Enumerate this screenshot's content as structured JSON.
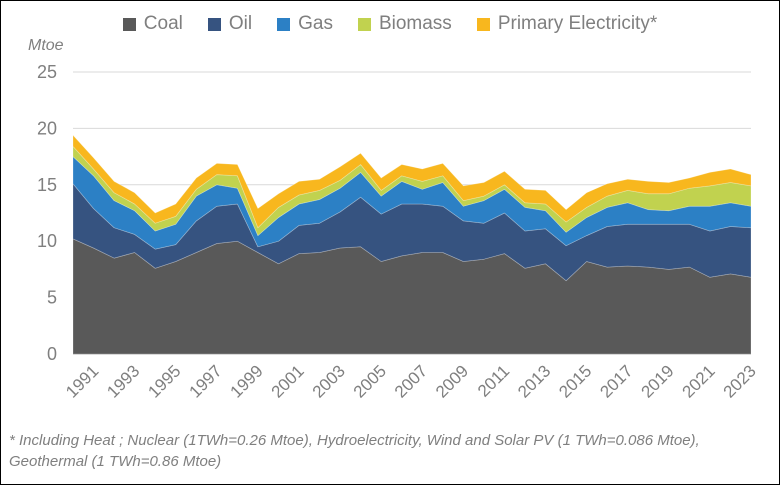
{
  "chart_data": {
    "type": "area",
    "stacked": true,
    "title": "",
    "ylabel": "Mtoe",
    "ylim": [
      0,
      25
    ],
    "yticks": [
      0,
      5,
      10,
      15,
      20,
      25
    ],
    "grid": "horizontal",
    "grid_color": "#D9D9D9",
    "axis_text_color": "#7F7F7F",
    "legend_position": "top",
    "x": [
      1990,
      1991,
      1992,
      1993,
      1994,
      1995,
      1996,
      1997,
      1998,
      1999,
      2000,
      2001,
      2002,
      2003,
      2004,
      2005,
      2006,
      2007,
      2008,
      2009,
      2010,
      2011,
      2012,
      2013,
      2014,
      2015,
      2016,
      2017,
      2018,
      2019,
      2020,
      2021,
      2022,
      2023
    ],
    "x_tick_labels": [
      "1991",
      "1993",
      "1995",
      "1997",
      "1999",
      "2001",
      "2003",
      "2005",
      "2007",
      "2009",
      "2011",
      "2013",
      "2015",
      "2017",
      "2019",
      "2021",
      "2023"
    ],
    "series": [
      {
        "name": "Coal",
        "color": "#595959",
        "values": [
          10.2,
          9.4,
          8.5,
          9.0,
          7.6,
          8.2,
          9.0,
          9.8,
          10.0,
          9.0,
          8.0,
          8.9,
          9.0,
          9.4,
          9.5,
          8.2,
          8.7,
          9.0,
          9.0,
          8.2,
          8.4,
          8.9,
          7.6,
          8.0,
          6.5,
          8.2,
          7.7,
          7.8,
          7.7,
          7.5,
          7.7,
          6.8,
          7.1,
          6.8
        ]
      },
      {
        "name": "Oil",
        "color": "#365380",
        "values": [
          4.9,
          3.5,
          2.7,
          1.6,
          1.7,
          1.5,
          2.8,
          3.3,
          3.3,
          0.5,
          2.0,
          2.5,
          2.6,
          3.2,
          4.4,
          4.2,
          4.6,
          4.3,
          4.1,
          3.6,
          3.2,
          3.6,
          3.3,
          3.1,
          3.1,
          2.3,
          3.6,
          3.7,
          3.8,
          4.0,
          3.8,
          4.1,
          4.2,
          4.4
        ]
      },
      {
        "name": "Gas",
        "color": "#2C80C5",
        "values": [
          2.4,
          2.9,
          2.4,
          2.1,
          1.6,
          1.8,
          2.2,
          1.9,
          1.4,
          1.0,
          2.1,
          1.9,
          2.1,
          2.1,
          2.2,
          1.6,
          2.0,
          1.3,
          2.1,
          1.3,
          2.0,
          2.1,
          2.1,
          1.6,
          1.2,
          1.6,
          1.7,
          1.9,
          1.3,
          1.2,
          1.6,
          2.2,
          2.1,
          1.9
        ]
      },
      {
        "name": "Biomass",
        "color": "#C1D24F",
        "values": [
          0.9,
          0.6,
          0.7,
          0.6,
          0.7,
          0.7,
          0.6,
          0.9,
          1.1,
          0.7,
          0.9,
          0.8,
          0.8,
          0.7,
          0.7,
          0.5,
          0.5,
          0.7,
          0.6,
          0.5,
          0.4,
          0.4,
          0.4,
          0.6,
          0.9,
          0.9,
          1.0,
          1.1,
          1.4,
          1.5,
          1.6,
          1.8,
          1.8,
          1.8
        ]
      },
      {
        "name": "Primary Electricity*",
        "color": "#F8B71E",
        "values": [
          1.0,
          1.0,
          1.0,
          1.0,
          0.9,
          1.1,
          1.0,
          1.0,
          1.0,
          1.7,
          1.2,
          1.2,
          1.0,
          1.2,
          1.0,
          1.1,
          1.0,
          1.1,
          1.1,
          1.3,
          1.2,
          1.2,
          1.2,
          1.2,
          1.1,
          1.3,
          1.1,
          1.0,
          1.1,
          1.0,
          0.9,
          1.2,
          1.2,
          1.0
        ]
      }
    ]
  },
  "footnote": {
    "lines": [
      "* Including Heat ; Nuclear (1TWh=0.26 Mtoe), Hydroelectricity, Wind and Solar PV (1 TWh=0.086 Mtoe),",
      "Geothermal (1 TWh=0.86 Mtoe)"
    ]
  }
}
